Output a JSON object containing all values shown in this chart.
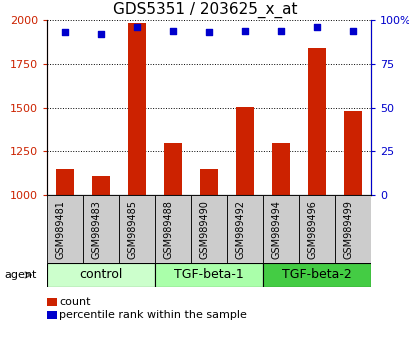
{
  "title": "GDS5351 / 203625_x_at",
  "samples": [
    "GSM989481",
    "GSM989483",
    "GSM989485",
    "GSM989488",
    "GSM989490",
    "GSM989492",
    "GSM989494",
    "GSM989496",
    "GSM989499"
  ],
  "counts": [
    1150,
    1110,
    1980,
    1295,
    1150,
    1500,
    1295,
    1840,
    1480
  ],
  "percentiles": [
    93,
    92,
    96,
    94,
    93,
    94,
    94,
    96,
    94
  ],
  "ylim_left": [
    1000,
    2000
  ],
  "ylim_right": [
    0,
    100
  ],
  "yticks_left": [
    1000,
    1250,
    1500,
    1750,
    2000
  ],
  "yticks_right": [
    0,
    25,
    50,
    75,
    100
  ],
  "groups": [
    {
      "label": "control",
      "start": 0,
      "end": 3,
      "color": "#ccffcc"
    },
    {
      "label": "TGF-beta-1",
      "start": 3,
      "end": 6,
      "color": "#aaffaa"
    },
    {
      "label": "TGF-beta-2",
      "start": 6,
      "end": 9,
      "color": "#44cc44"
    }
  ],
  "bar_color": "#cc2200",
  "dot_color": "#0000cc",
  "bar_width": 0.5,
  "tick_label_color_left": "#cc2200",
  "tick_label_color_right": "#0000cc",
  "title_fontsize": 11,
  "axis_fontsize": 8,
  "legend_fontsize": 8,
  "group_label_fontsize": 9,
  "sample_label_fontsize": 7,
  "sample_cell_color": "#cccccc"
}
